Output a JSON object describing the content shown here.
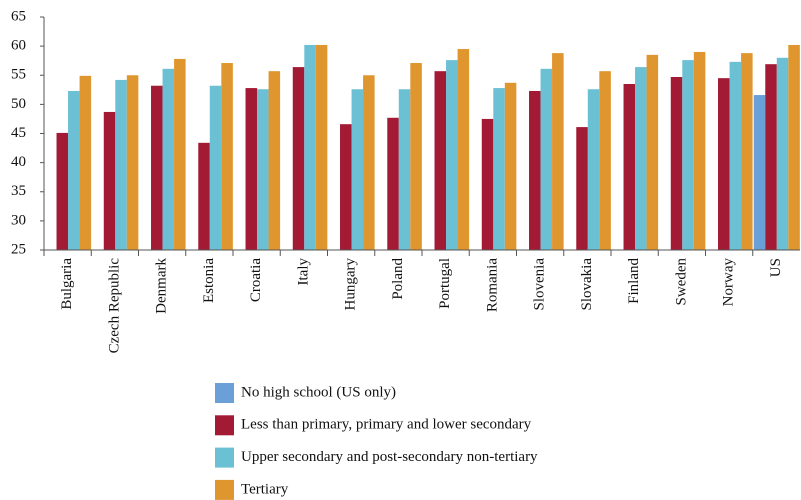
{
  "chart_data": {
    "type": "bar",
    "categories": [
      "Bulgaria",
      "Czech Republic",
      "Denmark",
      "Estonia",
      "Croatia",
      "Italy",
      "Hungary",
      "Poland",
      "Portugal",
      "Romania",
      "Slovenia",
      "Slovakia",
      "Finland",
      "Sweden",
      "Norway",
      "US"
    ],
    "series": [
      {
        "name": "No high school (US only)",
        "color": "#6a9fd8",
        "values": [
          null,
          null,
          null,
          null,
          null,
          null,
          null,
          null,
          null,
          null,
          null,
          null,
          null,
          null,
          null,
          51.6
        ]
      },
      {
        "name": "Less than primary, primary and lower secondary",
        "color": "#a31a35",
        "values": [
          45.1,
          48.7,
          53.2,
          43.4,
          52.8,
          56.4,
          46.6,
          47.7,
          55.7,
          47.5,
          52.3,
          46.1,
          53.5,
          54.7,
          54.5,
          56.9
        ]
      },
      {
        "name": "Upper secondary and post-secondary non-tertiary",
        "color": "#6cc0d4",
        "values": [
          52.3,
          54.2,
          56.1,
          53.2,
          52.6,
          60.2,
          52.6,
          52.6,
          57.6,
          52.8,
          56.1,
          52.6,
          56.4,
          57.6,
          57.3,
          58.0
        ]
      },
      {
        "name": "Tertiary",
        "color": "#e0962e",
        "values": [
          54.9,
          55.0,
          57.8,
          57.1,
          55.7,
          60.2,
          55.0,
          57.1,
          59.5,
          53.7,
          58.8,
          55.7,
          58.5,
          59.0,
          58.8,
          60.2
        ]
      }
    ],
    "ylim": [
      25,
      65
    ],
    "yticks": [
      25,
      30,
      35,
      40,
      45,
      50,
      55,
      60,
      65
    ],
    "grid": false,
    "legend": "bottom"
  }
}
